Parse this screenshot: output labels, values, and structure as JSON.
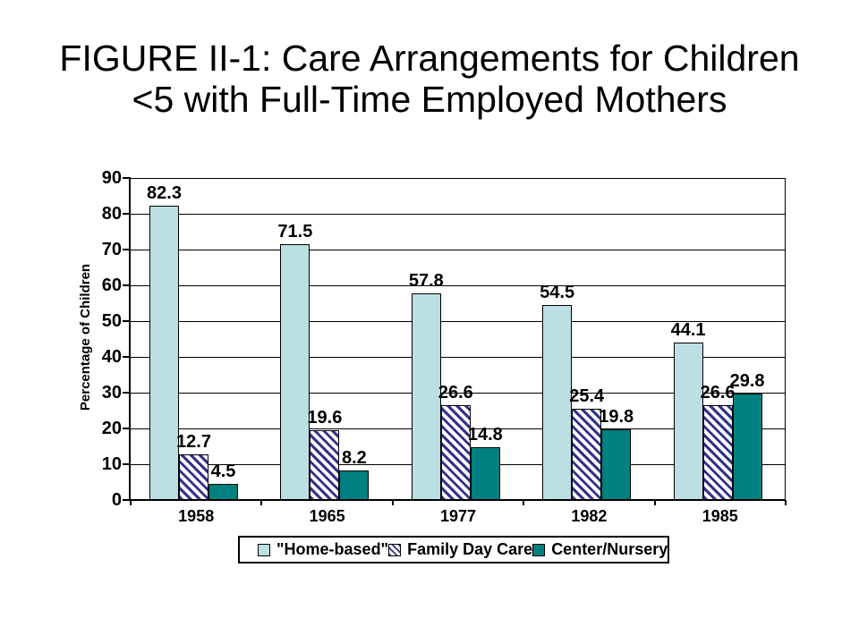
{
  "slide_title": {
    "line1": "FIGURE II-1: Care Arrangements for Children",
    "line2": "<5 with Full-Time Employed Mothers"
  },
  "chart_data": {
    "type": "bar",
    "title": "FIGURE II-1: Care Arrangements for Children <5 with Full-Time Employed Mothers",
    "categories": [
      "1958",
      "1965",
      "1977",
      "1982",
      "1985"
    ],
    "series": [
      {
        "name": "\"Home-based\"",
        "values": [
          82.3,
          71.5,
          57.8,
          54.5,
          44.1
        ],
        "fill": "#bcdfe3",
        "pattern": "solid"
      },
      {
        "name": "Family Day Care",
        "values": [
          12.7,
          19.6,
          26.6,
          25.4,
          26.6
        ],
        "fill": "#ffffff",
        "pattern": "diagonal-hatch",
        "hatch_color": "#333388"
      },
      {
        "name": "Center/Nursery",
        "values": [
          4.5,
          8.2,
          14.8,
          19.8,
          29.8
        ],
        "fill": "#008080",
        "pattern": "solid"
      }
    ],
    "xlabel": "",
    "ylabel": "Percentage of Children",
    "ylim": [
      0,
      90
    ],
    "ytick_step": 10,
    "grid": true,
    "legend_position": "bottom",
    "bar_value_labels": true,
    "axis_color": "#000000",
    "text_color": "#000000"
  }
}
